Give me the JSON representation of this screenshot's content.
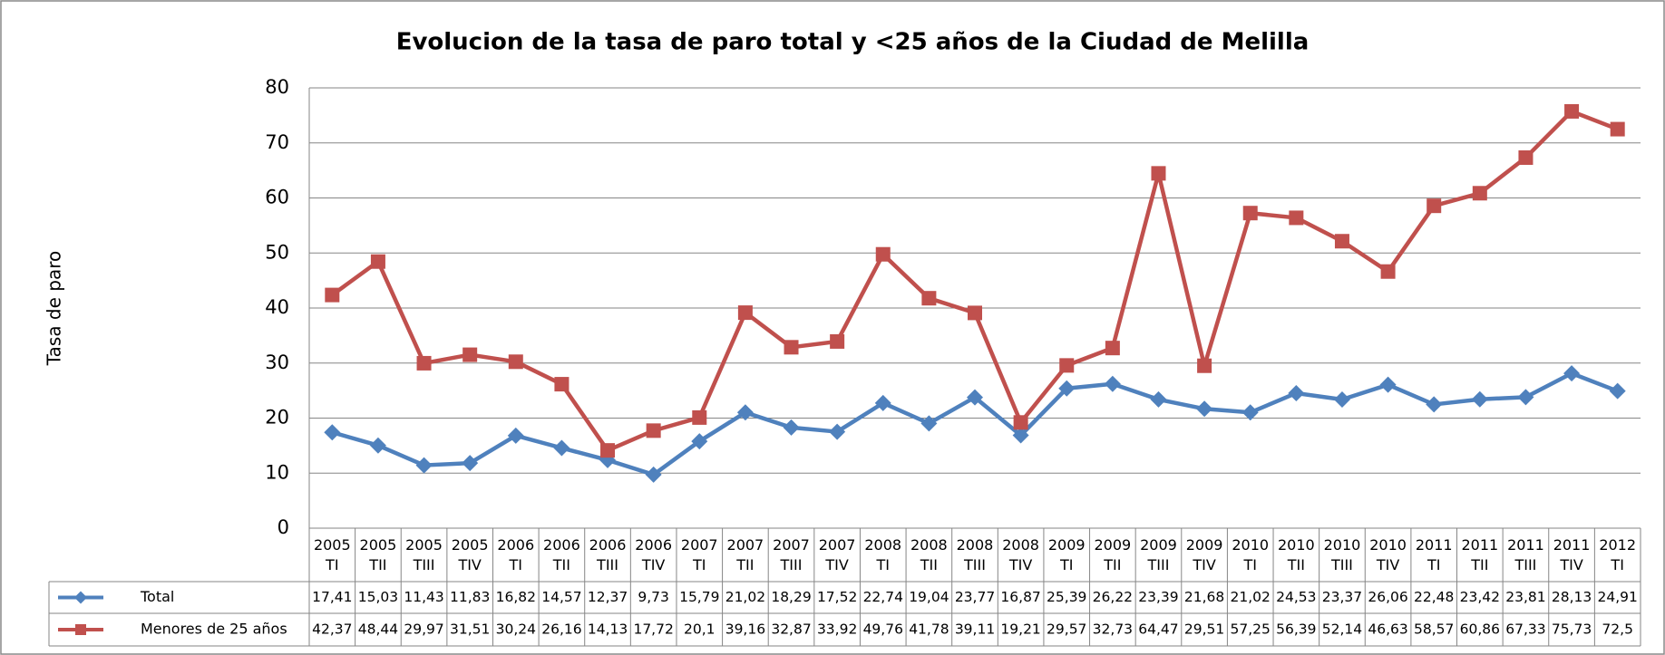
{
  "chart_data": {
    "type": "line",
    "title": "Evolucion de la tasa de paro total y <25 años de la Ciudad de Melilla",
    "y_label": "Tasa de paro",
    "categories": [
      "2005 TI",
      "2005 TII",
      "2005 TIII",
      "2005 TIV",
      "2006 TI",
      "2006 TII",
      "2006 TIII",
      "2006 TIV",
      "2007 TI",
      "2007 TII",
      "2007 TIII",
      "2007 TIV",
      "2008 TI",
      "2008 TII",
      "2008 TIII",
      "2008 TIV",
      "2009 TI",
      "2009 TII",
      "2009 TIII",
      "2009 TIV",
      "2010 TI",
      "2010 TII",
      "2010 TIII",
      "2010 TIV",
      "2011 TI",
      "2011 TII",
      "2011 TIII",
      "2011 TIV",
      "2012 TI"
    ],
    "series": [
      {
        "name": "Total",
        "color": "#4f81bd",
        "marker": "diamond",
        "values": [
          17.41,
          15.03,
          11.43,
          11.83,
          16.82,
          14.57,
          12.37,
          9.73,
          15.79,
          21.02,
          18.29,
          17.52,
          22.74,
          19.04,
          23.77,
          16.87,
          25.39,
          26.22,
          23.39,
          21.68,
          21.02,
          24.53,
          23.37,
          26.06,
          22.48,
          23.42,
          23.81,
          28.13,
          24.91
        ],
        "value_labels": [
          "17,41",
          "15,03",
          "11,43",
          "11,83",
          "16,82",
          "14,57",
          "12,37",
          "9,73",
          "15,79",
          "21,02",
          "18,29",
          "17,52",
          "22,74",
          "19,04",
          "23,77",
          "16,87",
          "25,39",
          "26,22",
          "23,39",
          "21,68",
          "21,02",
          "24,53",
          "23,37",
          "26,06",
          "22,48",
          "23,42",
          "23,81",
          "28,13",
          "24,91"
        ]
      },
      {
        "name": "Menores de 25 años",
        "color": "#c0504d",
        "marker": "square",
        "values": [
          42.37,
          48.44,
          29.97,
          31.51,
          30.24,
          26.16,
          14.13,
          17.72,
          20.1,
          39.16,
          32.87,
          33.92,
          49.76,
          41.78,
          39.11,
          19.21,
          29.57,
          32.73,
          64.47,
          29.51,
          57.25,
          56.39,
          52.14,
          46.63,
          58.57,
          60.86,
          67.33,
          75.73,
          72.5
        ],
        "value_labels": [
          "42,37",
          "48,44",
          "29,97",
          "31,51",
          "30,24",
          "26,16",
          "14,13",
          "17,72",
          "20,1",
          "39,16",
          "32,87",
          "33,92",
          "49,76",
          "41,78",
          "39,11",
          "19,21",
          "29,57",
          "32,73",
          "64,47",
          "29,51",
          "57,25",
          "56,39",
          "52,14",
          "46,63",
          "58,57",
          "60,86",
          "67,33",
          "75,73",
          "72,5"
        ]
      }
    ],
    "ylim": [
      0,
      80
    ],
    "yticks": [
      0,
      10,
      20,
      30,
      40,
      50,
      60,
      70,
      80
    ],
    "grid": true
  }
}
